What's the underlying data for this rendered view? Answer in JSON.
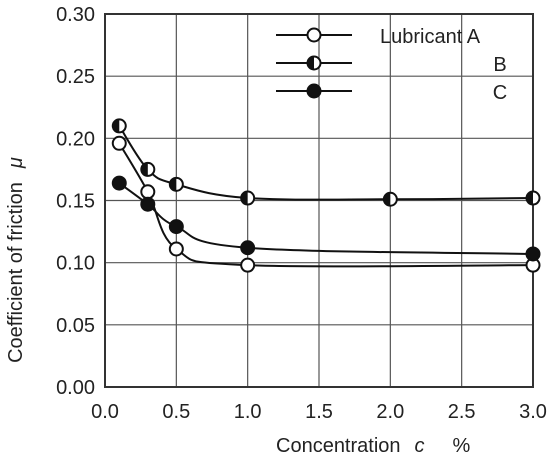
{
  "chart_data": {
    "type": "line",
    "xlabel": "Concentration",
    "xlabel_symbol": "c",
    "xlabel_unit": "%",
    "ylabel": "Coefficient of friction",
    "ylabel_symbol": "μ",
    "xlim": [
      0.0,
      3.0
    ],
    "ylim": [
      0.0,
      0.3
    ],
    "x_ticks": [
      0.0,
      0.5,
      1.0,
      1.5,
      2.0,
      2.5,
      3.0
    ],
    "x_tick_labels": [
      "0.0",
      "0.5",
      "1.0",
      "1.5",
      "2.0",
      "2.5",
      "3.0"
    ],
    "y_ticks": [
      0.0,
      0.05,
      0.1,
      0.15,
      0.2,
      0.25,
      0.3
    ],
    "y_tick_labels": [
      "0.00",
      "0.05",
      "0.10",
      "0.15",
      "0.20",
      "0.25",
      "0.30"
    ],
    "grid": true,
    "legend_position": "top-right",
    "series": [
      {
        "name": "Lubricant A",
        "marker": "open",
        "x": [
          0.1,
          0.3,
          0.5,
          1.0,
          3.0
        ],
        "y": [
          0.196,
          0.157,
          0.111,
          0.098,
          0.098
        ]
      },
      {
        "name": "B",
        "marker": "half",
        "x": [
          0.1,
          0.3,
          0.5,
          1.0,
          2.0,
          3.0
        ],
        "y": [
          0.21,
          0.175,
          0.163,
          0.152,
          0.151,
          0.152
        ]
      },
      {
        "name": "C",
        "marker": "filled",
        "x": [
          0.1,
          0.3,
          0.5,
          1.0,
          3.0
        ],
        "y": [
          0.164,
          0.147,
          0.129,
          0.112,
          0.107
        ]
      }
    ]
  }
}
